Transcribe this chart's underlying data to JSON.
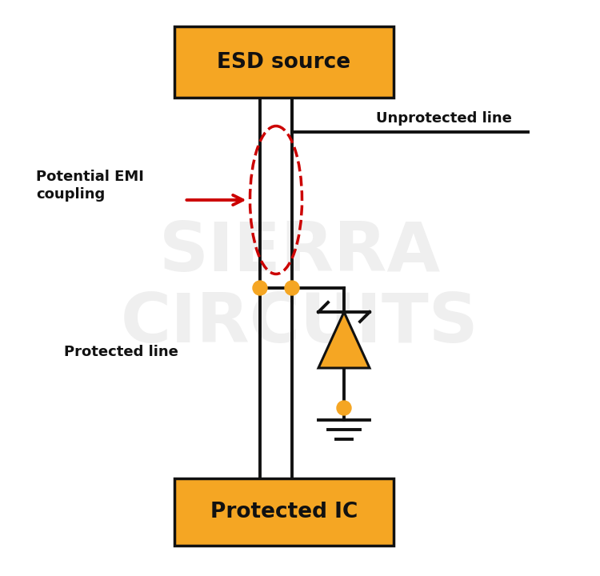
{
  "bg_color": "#ffffff",
  "orange": "#F5A623",
  "red": "#CC0000",
  "black": "#111111",
  "gray_watermark": "#cccccc",
  "esd_label": "ESD source",
  "ic_label": "Protected IC",
  "unprotected_label": "Unprotected line",
  "protected_label": "Protected line",
  "emi_label": "Potential EMI\ncoupling",
  "fig_w": 7.5,
  "fig_h": 7.2,
  "dpi": 100
}
